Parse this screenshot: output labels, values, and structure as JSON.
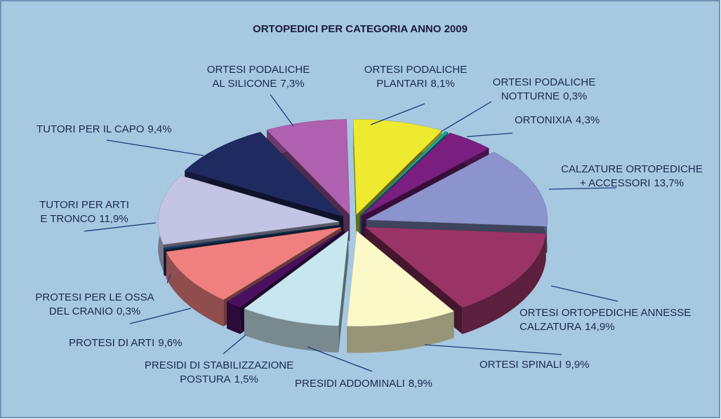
{
  "chart_data": {
    "type": "pie3d",
    "title": "ORTOPEDICI PER CATEGORIA ANNO 2009",
    "categories": [
      [
        "ORTESI PODALICHE",
        "PLANTARI"
      ],
      [
        "ORTESI PODALICHE",
        "NOTTURNE"
      ],
      [
        "ORTONIXIA"
      ],
      [
        "CALZATURE ORTOPEDICHE",
        "+ ACCESSORI"
      ],
      [
        "ORTESI ORTOPEDICHE ANNESSE",
        "CALZATURA"
      ],
      [
        "ORTESI SPINALI"
      ],
      [
        "PRESIDI ADDOMINALI"
      ],
      [
        "PRESIDI DI STABILIZZAZIONE",
        "POSTURA"
      ],
      [
        "PROTESI DI ARTI"
      ],
      [
        "PROTESI PER LE OSSA",
        "DEL CRANIO"
      ],
      [
        "TUTORI PER ARTI",
        "E TRONCO"
      ],
      [
        "TUTORI PER IL CAPO"
      ],
      [
        "ORTESI PODALICHE",
        "AL SILICONE"
      ]
    ],
    "values": [
      8.1,
      0.3,
      4.3,
      13.7,
      14.9,
      9.9,
      8.9,
      1.5,
      9.6,
      0.3,
      11.9,
      9.4,
      7.3
    ],
    "value_labels": [
      "8,1%",
      "0,3%",
      "4,3%",
      "13,7%",
      "14,9%",
      "9,9%",
      "8,9%",
      "1,5%",
      "9,6%",
      "0,3%",
      "11,9%",
      "9,4%",
      "7,3%"
    ],
    "colors": [
      "#eeea30",
      "#1aa5a0",
      "#7a1f80",
      "#8b94cc",
      "#9a3466",
      "#fbf9c8",
      "#c8e6ef",
      "#4a1060",
      "#f08080",
      "#1a3c6a",
      "#c4c4e4",
      "#1f2a60",
      "#b060b0"
    ]
  }
}
